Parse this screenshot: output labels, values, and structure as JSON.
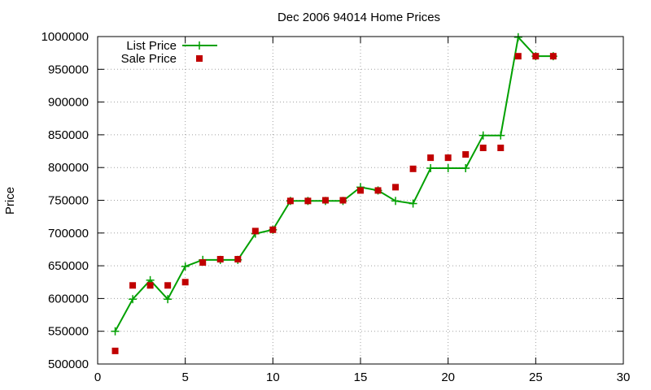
{
  "chart_data": {
    "type": "line",
    "title": "Dec 2006 94014 Home Prices",
    "xlabel": "",
    "ylabel": "Price",
    "xlim": [
      0,
      30
    ],
    "ylim": [
      500000,
      1000000
    ],
    "x_ticks": [
      0,
      5,
      10,
      15,
      20,
      25,
      30
    ],
    "y_ticks": [
      500000,
      550000,
      600000,
      650000,
      700000,
      750000,
      800000,
      850000,
      900000,
      950000,
      1000000
    ],
    "grid": true,
    "legend_position": "top-left",
    "series": [
      {
        "name": "List Price",
        "style": "line-plus",
        "color": "#00a000",
        "points": [
          [
            1,
            550000
          ],
          [
            2,
            599000
          ],
          [
            3,
            628000
          ],
          [
            4,
            599000
          ],
          [
            5,
            649000
          ],
          [
            6,
            659000
          ],
          [
            7,
            659000
          ],
          [
            8,
            659000
          ],
          [
            9,
            699000
          ],
          [
            10,
            705000
          ],
          [
            11,
            749000
          ],
          [
            12,
            749000
          ],
          [
            13,
            749000
          ],
          [
            14,
            749000
          ],
          [
            15,
            770000
          ],
          [
            16,
            765000
          ],
          [
            17,
            749000
          ],
          [
            18,
            745000
          ],
          [
            19,
            799000
          ],
          [
            20,
            799000
          ],
          [
            21,
            799000
          ],
          [
            22,
            849000
          ],
          [
            23,
            849000
          ],
          [
            24,
            999000
          ],
          [
            25,
            970000
          ],
          [
            26,
            970000
          ]
        ]
      },
      {
        "name": "Sale Price",
        "style": "square",
        "color": "#c00000",
        "points": [
          [
            1,
            520000
          ],
          [
            2,
            620000
          ],
          [
            3,
            620000
          ],
          [
            4,
            620000
          ],
          [
            5,
            625000
          ],
          [
            6,
            655000
          ],
          [
            7,
            660000
          ],
          [
            8,
            660000
          ],
          [
            9,
            703000
          ],
          [
            10,
            705000
          ],
          [
            11,
            749000
          ],
          [
            12,
            749000
          ],
          [
            13,
            750000
          ],
          [
            14,
            750000
          ],
          [
            15,
            765000
          ],
          [
            16,
            765000
          ],
          [
            17,
            770000
          ],
          [
            18,
            798000
          ],
          [
            19,
            815000
          ],
          [
            20,
            815000
          ],
          [
            21,
            820000
          ],
          [
            22,
            830000
          ],
          [
            23,
            830000
          ],
          [
            24,
            970000
          ],
          [
            25,
            970000
          ],
          [
            26,
            970000
          ]
        ]
      }
    ]
  }
}
